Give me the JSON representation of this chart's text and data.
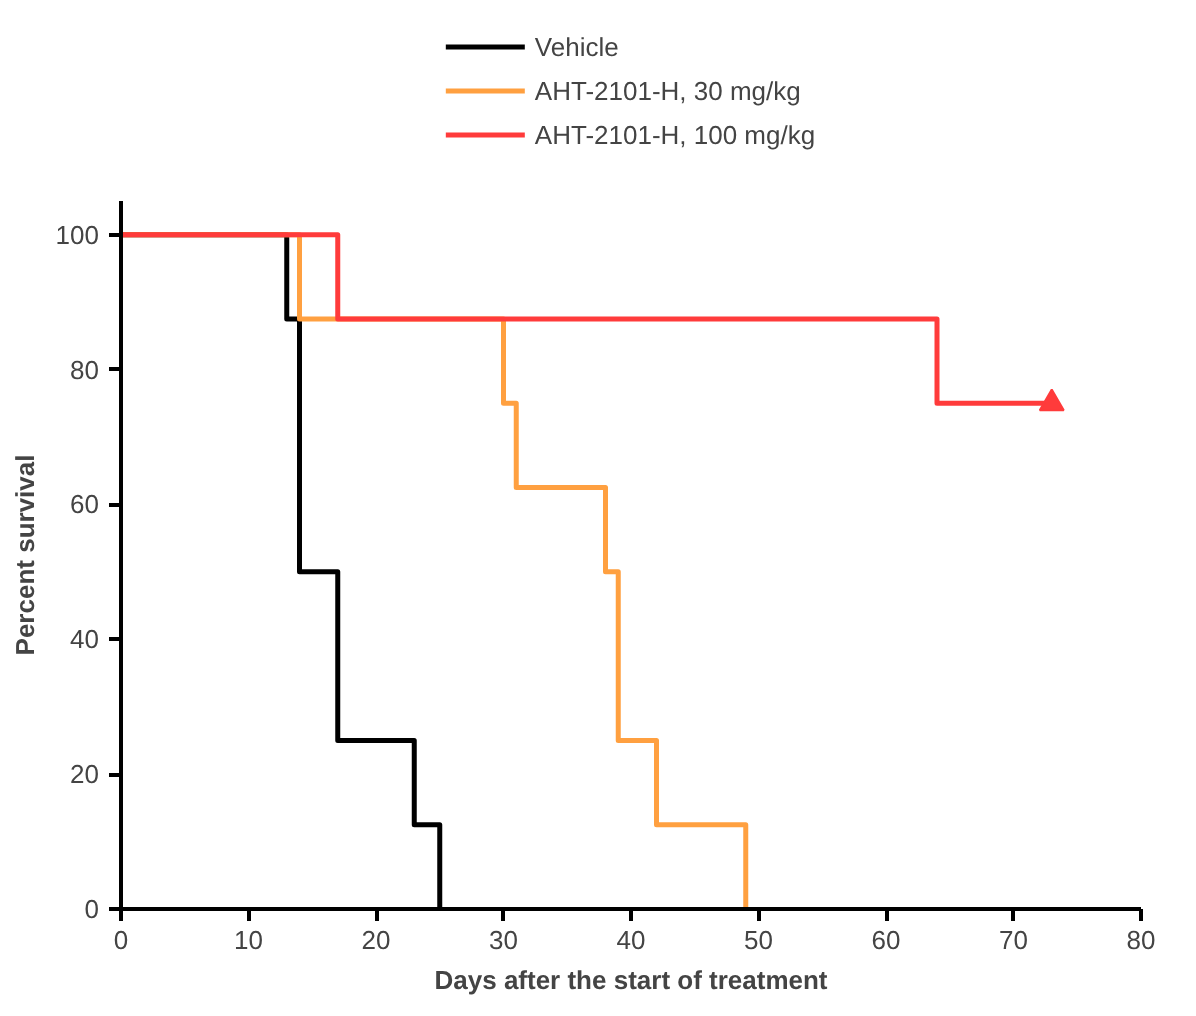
{
  "chart_data": {
    "type": "step",
    "xlabel": "Days after the start of treatment",
    "ylabel": "Percent survival",
    "xlim": [
      0,
      80
    ],
    "xticks": [
      0,
      10,
      20,
      30,
      40,
      50,
      60,
      70,
      80
    ],
    "ylim": [
      0,
      105
    ],
    "yticks": [
      0,
      20,
      40,
      60,
      80,
      100
    ],
    "grid": false,
    "legend": "top",
    "series": [
      {
        "name": "Vehicle",
        "color": "#000000",
        "x": [
          0,
          13,
          14,
          17,
          23,
          25
        ],
        "values": [
          100,
          87.5,
          50,
          25,
          12.5,
          0
        ]
      },
      {
        "name": "AHT-2101-H, 30 mg/kg",
        "color": "#ffa040",
        "x": [
          0,
          14,
          30,
          31,
          38,
          39,
          42,
          49
        ],
        "values": [
          100,
          87.5,
          75,
          62.5,
          50,
          25,
          12.5,
          0
        ]
      },
      {
        "name": "AHT-2101-H, 100 mg/kg",
        "color": "#ff3b3b",
        "x": [
          0,
          17,
          64,
          73
        ],
        "values": [
          100,
          87.5,
          75,
          75
        ]
      },
      {
        "type": "scatter",
        "color": "#ff3b3b",
        "marker": "triangle",
        "x": [
          73
        ],
        "values": [
          75
        ]
      }
    ]
  }
}
